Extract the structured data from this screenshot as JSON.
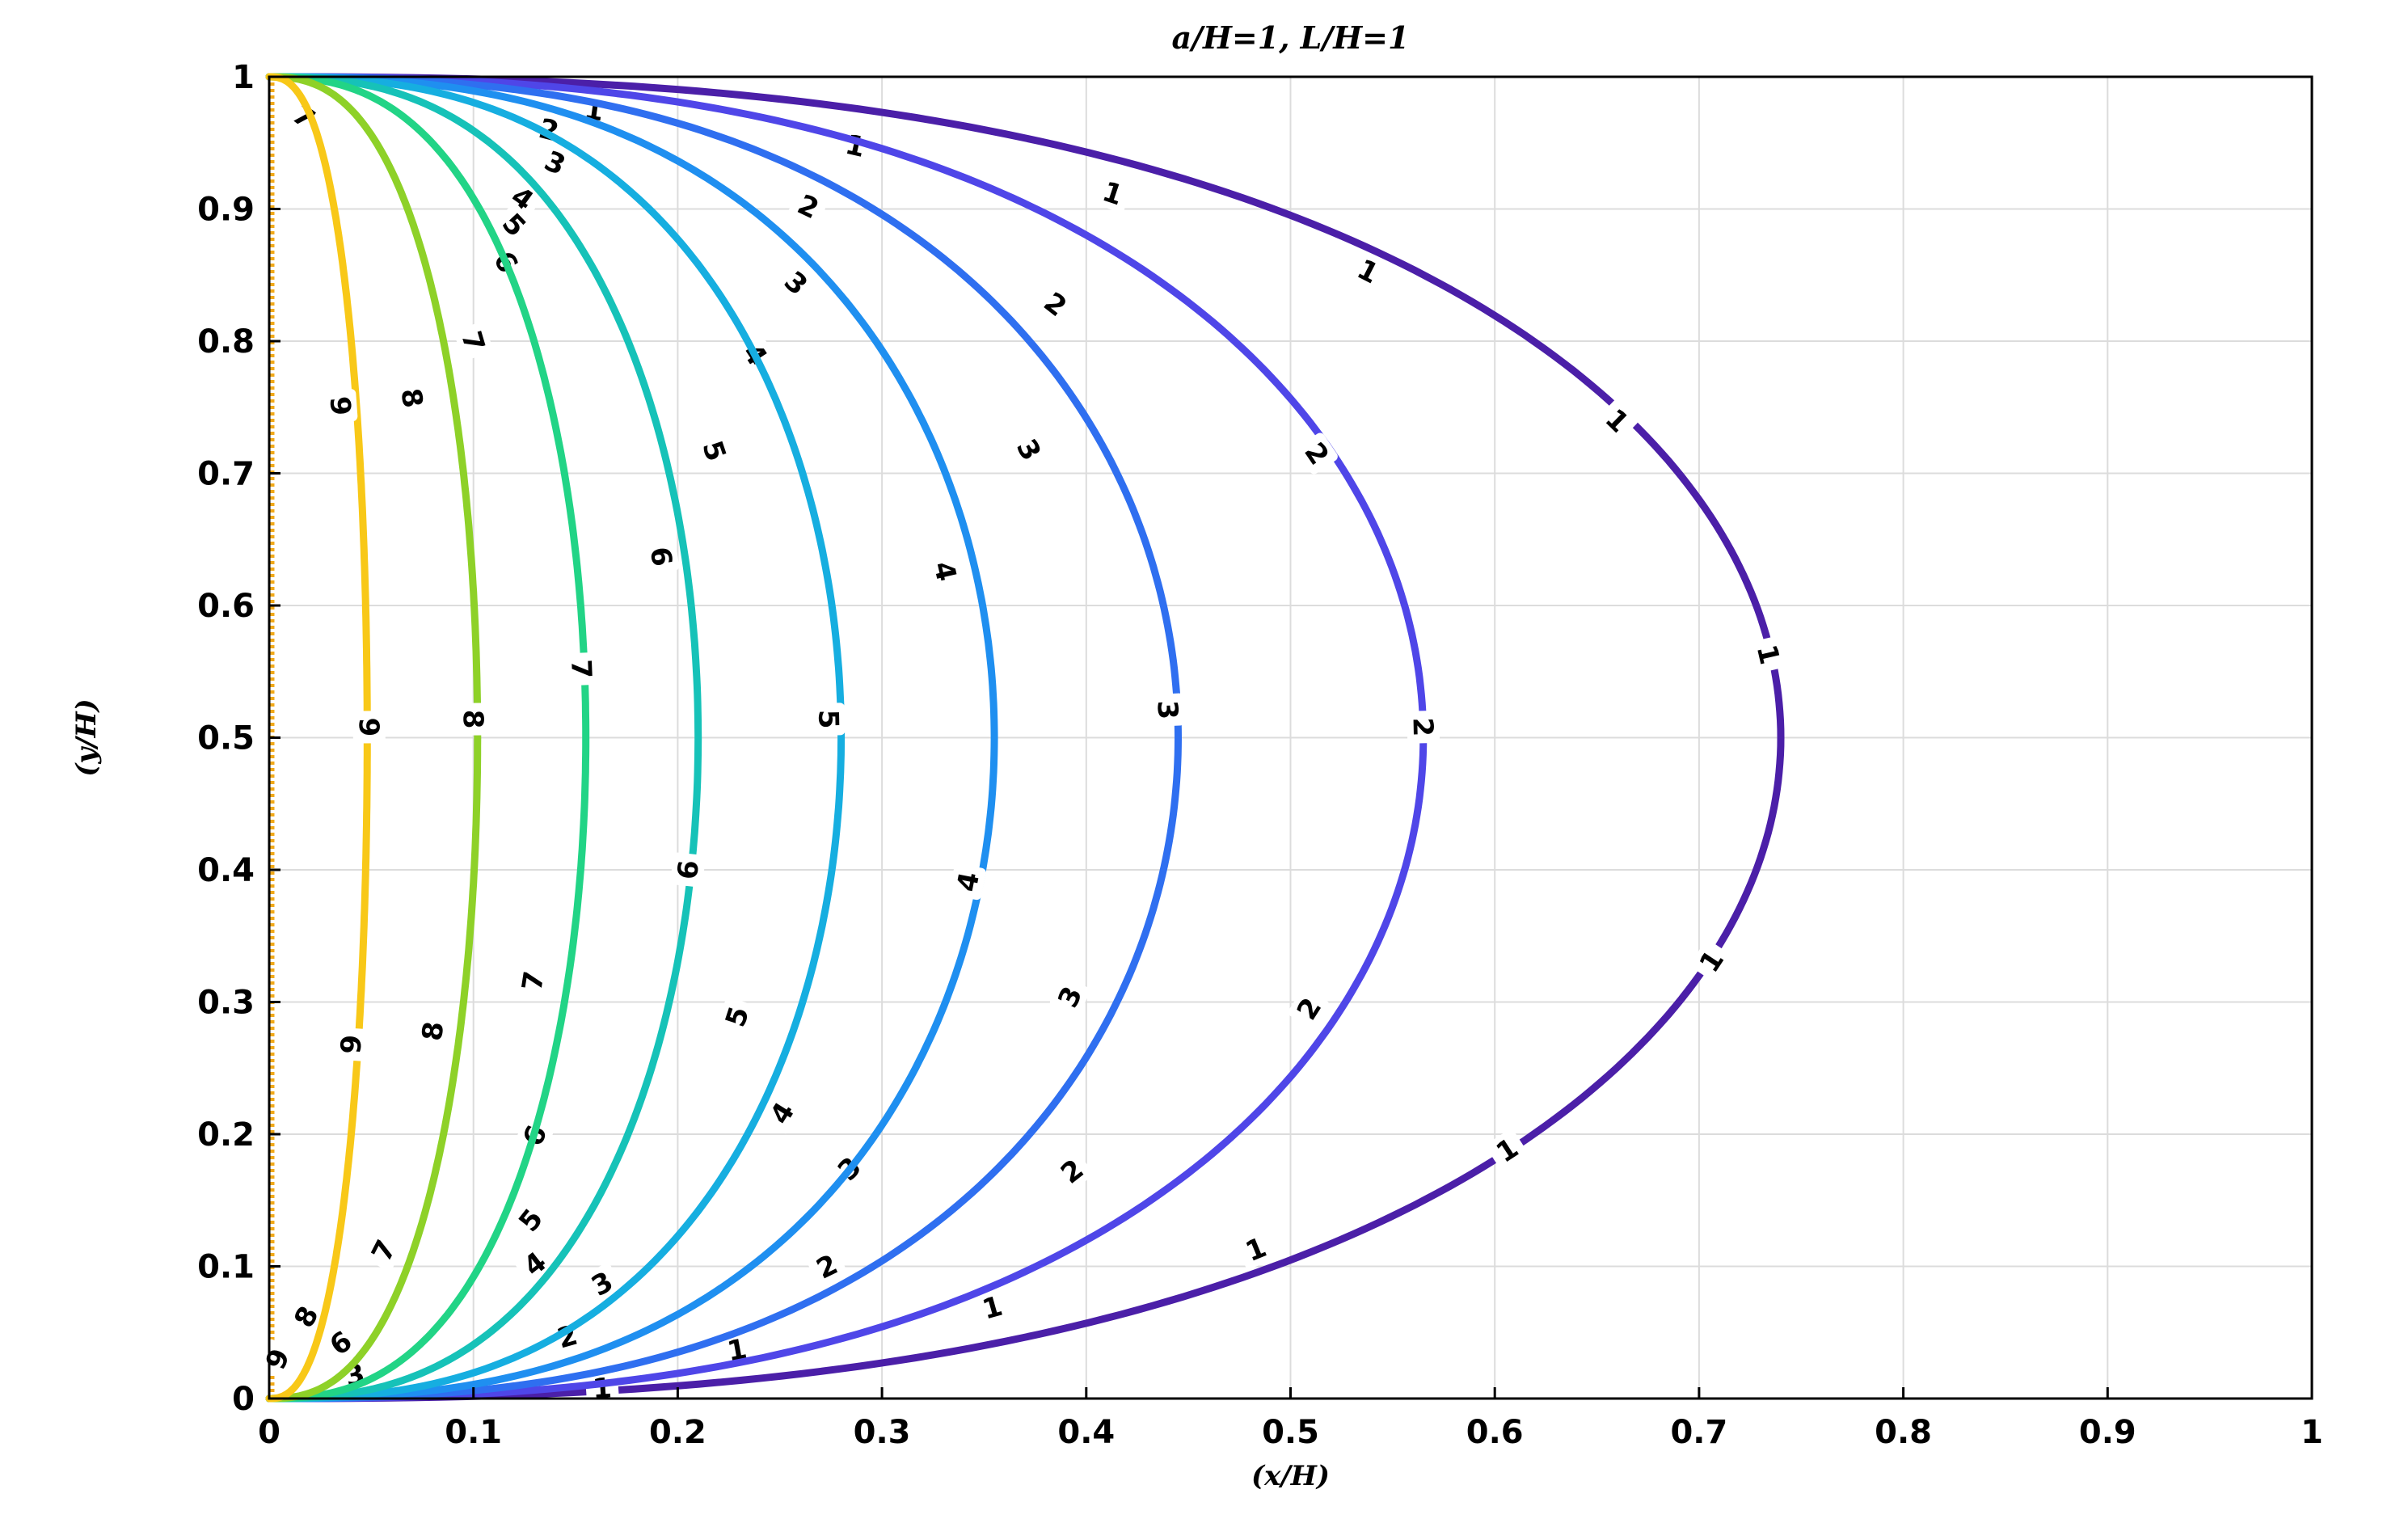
{
  "chart_data": {
    "type": "contour",
    "title": "a/H=1, L/H=1",
    "xlabel": "(x/H)",
    "ylabel": "(y/H)",
    "xlim": [
      0,
      1
    ],
    "ylim": [
      0,
      1
    ],
    "grid": true,
    "x_ticks": [
      "0",
      "0.1",
      "0.2",
      "0.3",
      "0.4",
      "0.5",
      "0.6",
      "0.7",
      "0.8",
      "0.9",
      "1"
    ],
    "y_ticks": [
      "0",
      "0.1",
      "0.2",
      "0.3",
      "0.4",
      "0.5",
      "0.6",
      "0.7",
      "0.8",
      "0.9",
      "1"
    ],
    "contours": [
      {
        "level": "1",
        "color": "#4b1fa8",
        "x_at_mid": 0.74,
        "label_positions": [
          [
            0.163,
            0.008
          ],
          [
            0.229,
            0.037
          ],
          [
            0.354,
            0.069
          ],
          [
            0.483,
            0.113
          ],
          [
            0.606,
            0.188
          ],
          [
            0.706,
            0.331
          ],
          [
            0.734,
            0.563
          ],
          [
            0.66,
            0.74
          ],
          [
            0.538,
            0.853
          ],
          [
            0.413,
            0.912
          ],
          [
            0.287,
            0.948
          ],
          [
            0.159,
            0.975
          ]
        ]
      },
      {
        "level": "2",
        "color": "#4f46e8",
        "x_at_mid": 0.565,
        "label_positions": [
          [
            0.146,
            0.047
          ],
          [
            0.273,
            0.1
          ],
          [
            0.393,
            0.172
          ],
          [
            0.509,
            0.295
          ],
          [
            0.565,
            0.508
          ],
          [
            0.513,
            0.715
          ],
          [
            0.385,
            0.828
          ],
          [
            0.264,
            0.902
          ],
          [
            0.137,
            0.96
          ]
        ]
      },
      {
        "level": "3",
        "color": "#2f6ff0",
        "x_at_mid": 0.445,
        "label_positions": [
          [
            0.042,
            0.018
          ],
          [
            0.163,
            0.087
          ],
          [
            0.284,
            0.174
          ],
          [
            0.392,
            0.304
          ],
          [
            0.44,
            0.521
          ],
          [
            0.372,
            0.718
          ],
          [
            0.258,
            0.844
          ],
          [
            0.14,
            0.935
          ]
        ]
      },
      {
        "level": "4",
        "color": "#1f8ff0",
        "x_at_mid": 0.355,
        "label_positions": [
          [
            0.13,
            0.102
          ],
          [
            0.251,
            0.216
          ],
          [
            0.342,
            0.391
          ],
          [
            0.331,
            0.626
          ],
          [
            0.238,
            0.79
          ],
          [
            0.124,
            0.908
          ]
        ]
      },
      {
        "level": "5",
        "color": "#16aee0",
        "x_at_mid": 0.28,
        "label_positions": [
          [
            0.128,
            0.135
          ],
          [
            0.229,
            0.289
          ],
          [
            0.274,
            0.514
          ],
          [
            0.218,
            0.717
          ],
          [
            0.12,
            0.888
          ]
        ]
      },
      {
        "level": "6",
        "color": "#16c2b8",
        "x_at_mid": 0.21,
        "label_positions": [
          [
            0.035,
            0.042
          ],
          [
            0.13,
            0.199
          ],
          [
            0.205,
            0.4
          ],
          [
            0.192,
            0.637
          ],
          [
            0.116,
            0.86
          ]
        ]
      },
      {
        "level": "7",
        "color": "#22d486",
        "x_at_mid": 0.155,
        "label_positions": [
          [
            0.056,
            0.112
          ],
          [
            0.129,
            0.316
          ],
          [
            0.153,
            0.552
          ],
          [
            0.1,
            0.8
          ],
          [
            0.017,
            0.97
          ]
        ]
      },
      {
        "level": "8",
        "color": "#8ed128",
        "x_at_mid": 0.102,
        "label_positions": [
          [
            0.018,
            0.062
          ],
          [
            0.08,
            0.278
          ],
          [
            0.1,
            0.514
          ],
          [
            0.07,
            0.757
          ]
        ]
      },
      {
        "level": "9",
        "color": "#f8c818",
        "x_at_mid": 0.048,
        "label_positions": [
          [
            0.004,
            0.03
          ],
          [
            0.04,
            0.268
          ],
          [
            0.049,
            0.508
          ],
          [
            0.035,
            0.751
          ]
        ]
      }
    ]
  }
}
